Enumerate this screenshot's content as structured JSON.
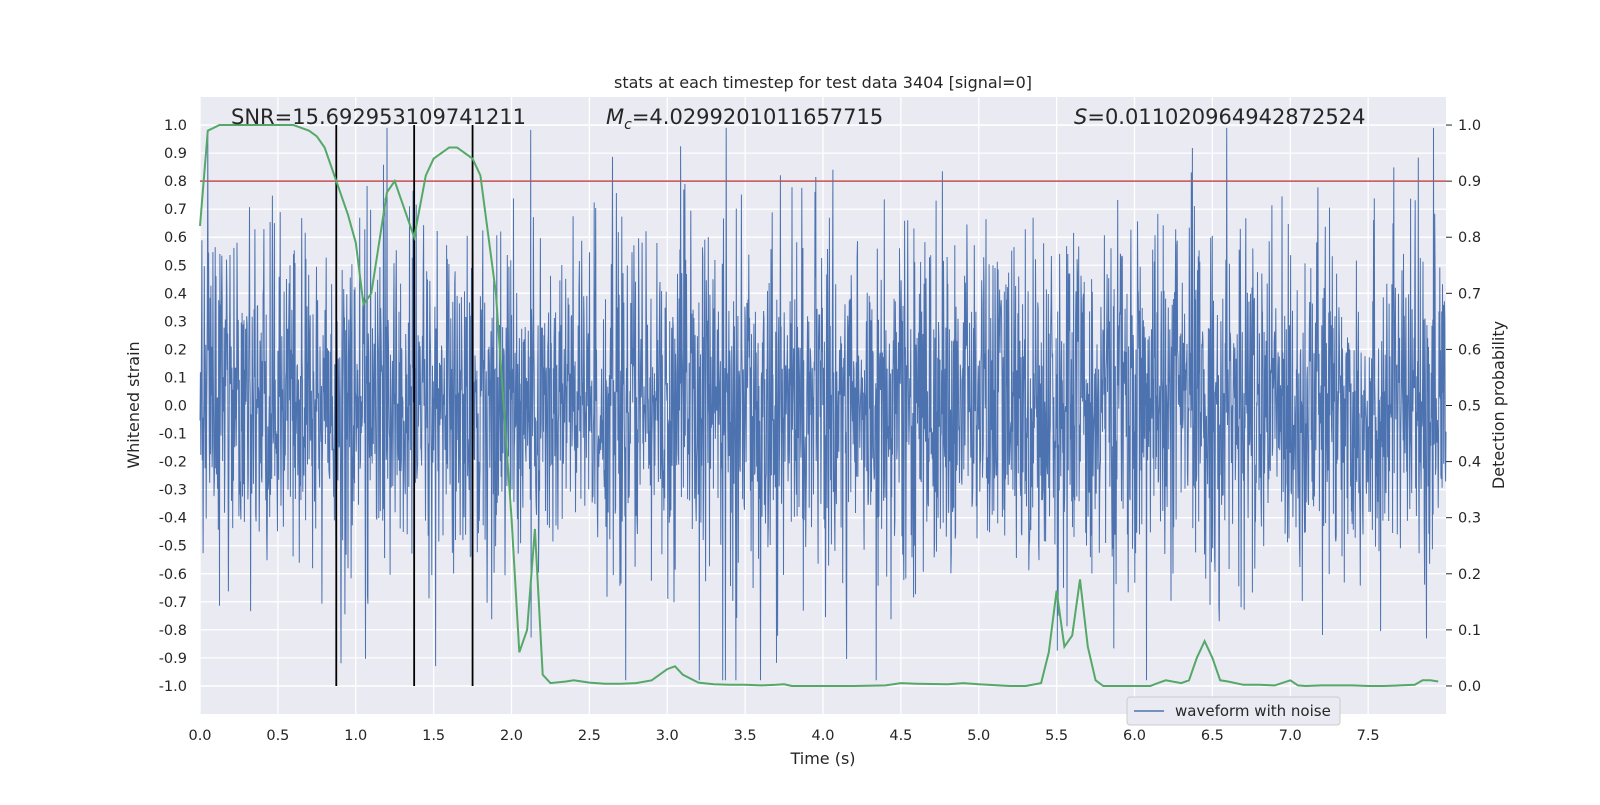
{
  "chart_data": {
    "type": "line",
    "title": "stats at each timestep for test data 3404 [signal=0]",
    "xlabel": "Time (s)",
    "ylabel": "Whitened strain",
    "y2label": "Detection probability",
    "xlim": [
      0,
      8
    ],
    "ylim": [
      -1.1,
      1.1
    ],
    "y2lim": [
      -0.05,
      1.05
    ],
    "xticks": [
      "0.0",
      "0.5",
      "1.0",
      "1.5",
      "2.0",
      "2.5",
      "3.0",
      "3.5",
      "4.0",
      "4.5",
      "5.0",
      "5.5",
      "6.0",
      "6.5",
      "7.0",
      "7.5"
    ],
    "yticks": [
      "1.0",
      "0.9",
      "0.8",
      "0.7",
      "0.6",
      "0.5",
      "0.4",
      "0.3",
      "0.2",
      "0.1",
      "0.0",
      "-0.1",
      "-0.2",
      "-0.3",
      "-0.4",
      "-0.5",
      "-0.6",
      "-0.7",
      "-0.8",
      "-0.9",
      "-1.0"
    ],
    "y2ticks": [
      "1.0",
      "0.9",
      "0.8",
      "0.7",
      "0.6",
      "0.5",
      "0.4",
      "0.3",
      "0.2",
      "0.1",
      "0.0"
    ],
    "grid": true,
    "legend": {
      "location": "lower-right",
      "entries": [
        "waveform with noise"
      ]
    },
    "annotations": {
      "snr": "SNR=15.692953109741211",
      "mc_symbol": "M",
      "mc_sub": "c",
      "mc_value": "=4.0299201011657715",
      "s_symbol": "S",
      "s_value": "=0.011020964942872524"
    },
    "threshold": {
      "axis": "y2",
      "value": 0.9,
      "color": "#c44e52"
    },
    "vertical_lines": {
      "x": [
        0.875,
        1.375,
        1.75
      ],
      "y_range": [
        -1.0,
        1.0
      ],
      "color": "#000000"
    },
    "series": [
      {
        "name": "waveform with noise",
        "axis": "y",
        "color": "#4c72b0",
        "description_values": {
          "x_range": [
            0,
            8
          ],
          "typical_amplitude": 0.35,
          "max": 0.99,
          "min": -0.98
        }
      },
      {
        "axis": "y2",
        "color": "#55a868",
        "x": [
          0.0,
          0.05,
          0.125,
          0.2,
          0.3,
          0.4,
          0.5,
          0.6,
          0.7,
          0.75,
          0.8,
          0.875,
          0.95,
          1.0,
          1.05,
          1.1,
          1.2,
          1.25,
          1.3,
          1.375,
          1.45,
          1.5,
          1.6,
          1.65,
          1.7,
          1.75,
          1.8,
          1.9,
          2.0,
          2.05,
          2.1,
          2.15,
          2.2,
          2.25,
          2.35,
          2.4,
          2.5,
          2.6,
          2.7,
          2.8,
          2.9,
          3.0,
          3.05,
          3.1,
          3.2,
          3.3,
          3.4,
          3.5,
          3.6,
          3.7,
          3.75,
          3.8,
          4.0,
          4.2,
          4.4,
          4.5,
          4.6,
          4.8,
          4.9,
          5.0,
          5.2,
          5.3,
          5.4,
          5.45,
          5.5,
          5.55,
          5.6,
          5.65,
          5.7,
          5.75,
          5.8,
          5.9,
          6.0,
          6.1,
          6.15,
          6.2,
          6.3,
          6.35,
          6.4,
          6.45,
          6.5,
          6.55,
          6.6,
          6.7,
          6.8,
          6.9,
          7.0,
          7.05,
          7.1,
          7.2,
          7.3,
          7.4,
          7.5,
          7.6,
          7.7,
          7.8,
          7.85,
          7.9,
          7.95
        ],
        "values": [
          0.82,
          0.99,
          1.0,
          1.0,
          1.0,
          1.0,
          1.0,
          1.0,
          0.99,
          0.98,
          0.96,
          0.9,
          0.84,
          0.79,
          0.68,
          0.7,
          0.88,
          0.9,
          0.86,
          0.8,
          0.91,
          0.94,
          0.96,
          0.96,
          0.95,
          0.94,
          0.91,
          0.7,
          0.3,
          0.06,
          0.1,
          0.28,
          0.02,
          0.005,
          0.008,
          0.01,
          0.006,
          0.004,
          0.004,
          0.005,
          0.01,
          0.03,
          0.035,
          0.02,
          0.006,
          0.003,
          0.002,
          0.002,
          0.001,
          0.002,
          0.003,
          0.0,
          0.0,
          0.0,
          0.001,
          0.005,
          0.004,
          0.003,
          0.005,
          0.003,
          0.0,
          0.0,
          0.005,
          0.06,
          0.17,
          0.07,
          0.09,
          0.19,
          0.07,
          0.01,
          0.0,
          0.0,
          0.0,
          0.0,
          0.005,
          0.01,
          0.005,
          0.01,
          0.05,
          0.08,
          0.05,
          0.01,
          0.008,
          0.002,
          0.002,
          0.001,
          0.01,
          0.001,
          0.0,
          0.001,
          0.001,
          0.001,
          0.0,
          0.0,
          0.001,
          0.002,
          0.01,
          0.01,
          0.008
        ]
      }
    ]
  }
}
